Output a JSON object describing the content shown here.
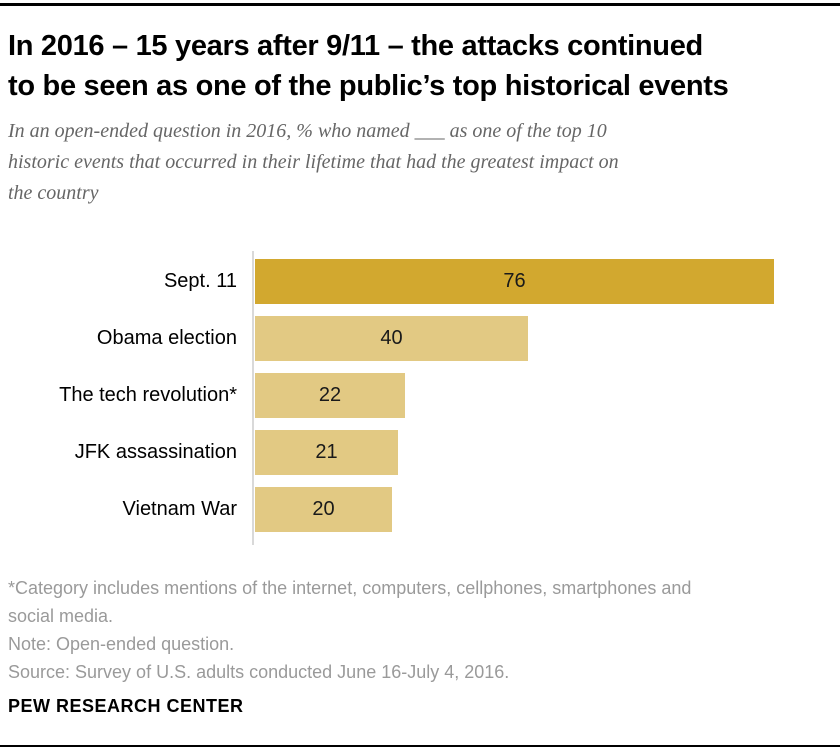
{
  "header": {
    "title_lines": [
      "In 2016 – 15 years after 9/11 – the attacks continued",
      "to be seen as one of the public’s top historical events"
    ],
    "subtitle_lines": [
      "In an open-ended question in 2016, % who named ___ as one of the top 10",
      "historic events that occurred in their lifetime that had the greatest impact on",
      "the country"
    ]
  },
  "chart_data": {
    "type": "bar",
    "orientation": "horizontal",
    "title": "In 2016 – 15 years after 9/11 – the attacks continued to be seen as one of the public’s top historical events",
    "subtitle": "In an open-ended question in 2016, % who named ___ as one of the top 10 historic events that occurred in their lifetime that had the greatest impact on the country",
    "categories": [
      "Sept. 11",
      "Obama election",
      "The tech revolution*",
      "JFK assassination",
      "Vietnam War"
    ],
    "values": [
      76,
      40,
      22,
      21,
      20
    ],
    "value_labels": [
      "76",
      "40",
      "22",
      "21",
      "20"
    ],
    "xlim": [
      0,
      80
    ],
    "grid": false,
    "legend": "none",
    "highlight_index": 0,
    "highlight_color": "#d2a82f",
    "bar_color": "#e2c983",
    "axis_line_color": "#d9d9d9"
  },
  "footnotes": {
    "lines": [
      "*Category includes mentions of the internet, computers, cellphones, smartphones and",
      "social media.",
      "Note: Open-ended question.",
      "Source: Survey of U.S. adults conducted June 16-July 4, 2016."
    ]
  },
  "footer": {
    "brand": "PEW RESEARCH CENTER"
  }
}
